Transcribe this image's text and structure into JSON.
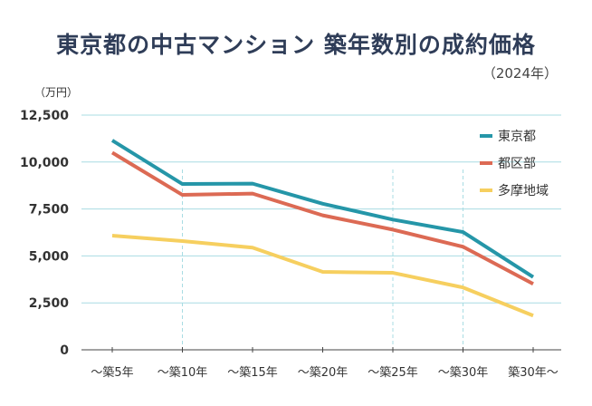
{
  "chart_data": {
    "type": "line",
    "title": "東京都の中古マンション 築年数別の成約価格",
    "subtitle": "（2024年）",
    "ylabel": "（万円）",
    "xlabel": "",
    "categories": [
      "～築5年",
      "～築10年",
      "～築15年",
      "～築20年",
      "～築25年",
      "～築30年",
      "築30年～"
    ],
    "ylim": [
      0,
      12500
    ],
    "yticks": [
      0,
      2500,
      5000,
      7500,
      10000,
      12500
    ],
    "ytick_labels": [
      "0",
      "2,500",
      "5,000",
      "7,500",
      "10,000",
      "12,500"
    ],
    "grid": true,
    "legend_position": "top-right",
    "series": [
      {
        "name": "東京都",
        "color": "#2596a8",
        "values": [
          11150,
          8830,
          8850,
          7780,
          6935,
          6270,
          3875
        ]
      },
      {
        "name": "都区部",
        "color": "#dc6a54",
        "values": [
          10500,
          8250,
          8320,
          7160,
          6400,
          5490,
          3510
        ]
      },
      {
        "name": "多摩地域",
        "color": "#f6cf5f",
        "values": [
          6080,
          5790,
          5440,
          4150,
          4100,
          3320,
          1820
        ]
      }
    ]
  }
}
